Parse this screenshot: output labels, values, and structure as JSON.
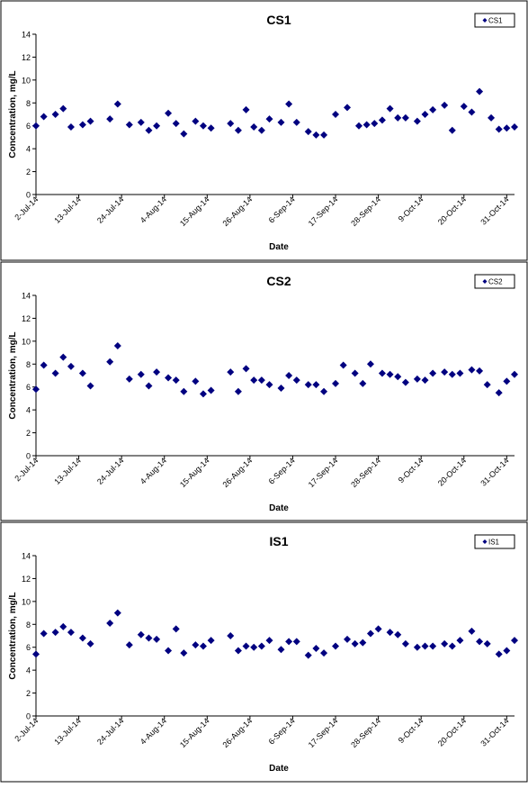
{
  "chart_data": [
    {
      "type": "scatter",
      "title": "CS1",
      "xlabel": "Date",
      "ylabel": "Concentration, mg/L",
      "ylim": [
        0,
        14
      ],
      "yticks": [
        "0",
        "2",
        "4",
        "6",
        "8",
        "10",
        "12",
        "14"
      ],
      "xlim": [
        "2-Jul-14",
        "2-Nov-14"
      ],
      "xticks": [
        "2-Jul-14",
        "13-Jul-14",
        "24-Jul-14",
        "4-Aug-14",
        "15-Aug-14",
        "26-Aug-14",
        "6-Sep-14",
        "17-Sep-14",
        "28-Sep-14",
        "9-Oct-14",
        "20-Oct-14",
        "31-Oct-14"
      ],
      "grid": false,
      "legend_position": "top-right",
      "marker_color": "#000080",
      "series": [
        {
          "name": "CS1",
          "x": [
            "2-Jul-14",
            "4-Jul-14",
            "7-Jul-14",
            "9-Jul-14",
            "11-Jul-14",
            "14-Jul-14",
            "16-Jul-14",
            "21-Jul-14",
            "23-Jul-14",
            "26-Jul-14",
            "29-Jul-14",
            "31-Jul-14",
            "2-Aug-14",
            "5-Aug-14",
            "7-Aug-14",
            "9-Aug-14",
            "12-Aug-14",
            "14-Aug-14",
            "16-Aug-14",
            "21-Aug-14",
            "23-Aug-14",
            "25-Aug-14",
            "27-Aug-14",
            "29-Aug-14",
            "31-Aug-14",
            "3-Sep-14",
            "5-Sep-14",
            "7-Sep-14",
            "10-Sep-14",
            "12-Sep-14",
            "14-Sep-14",
            "17-Sep-14",
            "20-Sep-14",
            "23-Sep-14",
            "25-Sep-14",
            "27-Sep-14",
            "29-Sep-14",
            "1-Oct-14",
            "3-Oct-14",
            "5-Oct-14",
            "8-Oct-14",
            "10-Oct-14",
            "12-Oct-14",
            "15-Oct-14",
            "17-Oct-14",
            "20-Oct-14",
            "22-Oct-14",
            "24-Oct-14",
            "27-Oct-14",
            "29-Oct-14",
            "31-Oct-14",
            "2-Nov-14"
          ],
          "values": [
            6.0,
            6.8,
            7.0,
            7.5,
            5.9,
            6.1,
            6.4,
            6.6,
            7.9,
            6.1,
            6.3,
            5.6,
            6.0,
            7.1,
            6.2,
            5.3,
            6.4,
            6.0,
            5.8,
            6.2,
            5.6,
            7.4,
            5.9,
            5.6,
            6.6,
            6.3,
            7.9,
            6.3,
            5.5,
            5.2,
            5.2,
            7.0,
            7.6,
            6.0,
            6.1,
            6.2,
            6.5,
            7.5,
            6.7,
            6.7,
            6.4,
            7.0,
            7.4,
            7.8,
            5.6,
            7.7,
            7.2,
            9.0,
            6.7,
            5.7,
            5.8,
            5.9
          ]
        }
      ]
    },
    {
      "type": "scatter",
      "title": "CS2",
      "xlabel": "Date",
      "ylabel": "Concentration, mg/L",
      "ylim": [
        0,
        14
      ],
      "yticks": [
        "0",
        "2",
        "4",
        "6",
        "8",
        "10",
        "12",
        "14"
      ],
      "xlim": [
        "2-Jul-14",
        "2-Nov-14"
      ],
      "xticks": [
        "2-Jul-14",
        "13-Jul-14",
        "24-Jul-14",
        "4-Aug-14",
        "15-Aug-14",
        "26-Aug-14",
        "6-Sep-14",
        "17-Sep-14",
        "28-Sep-14",
        "9-Oct-14",
        "20-Oct-14",
        "31-Oct-14"
      ],
      "grid": false,
      "legend_position": "top-right",
      "marker_color": "#000080",
      "series": [
        {
          "name": "CS2",
          "x": [
            "2-Jul-14",
            "4-Jul-14",
            "7-Jul-14",
            "9-Jul-14",
            "11-Jul-14",
            "14-Jul-14",
            "16-Jul-14",
            "21-Jul-14",
            "23-Jul-14",
            "26-Jul-14",
            "29-Jul-14",
            "31-Jul-14",
            "2-Aug-14",
            "5-Aug-14",
            "7-Aug-14",
            "9-Aug-14",
            "12-Aug-14",
            "14-Aug-14",
            "16-Aug-14",
            "21-Aug-14",
            "23-Aug-14",
            "25-Aug-14",
            "27-Aug-14",
            "29-Aug-14",
            "31-Aug-14",
            "3-Sep-14",
            "5-Sep-14",
            "7-Sep-14",
            "10-Sep-14",
            "12-Sep-14",
            "14-Sep-14",
            "17-Sep-14",
            "19-Sep-14",
            "22-Sep-14",
            "24-Sep-14",
            "26-Sep-14",
            "29-Sep-14",
            "1-Oct-14",
            "3-Oct-14",
            "5-Oct-14",
            "8-Oct-14",
            "10-Oct-14",
            "12-Oct-14",
            "15-Oct-14",
            "17-Oct-14",
            "19-Oct-14",
            "22-Oct-14",
            "24-Oct-14",
            "26-Oct-14",
            "29-Oct-14",
            "31-Oct-14",
            "2-Nov-14"
          ],
          "values": [
            5.8,
            7.9,
            7.2,
            8.6,
            7.8,
            7.2,
            6.1,
            8.2,
            9.6,
            6.7,
            7.1,
            6.1,
            7.3,
            6.8,
            6.6,
            5.6,
            6.5,
            5.4,
            5.7,
            7.3,
            5.6,
            7.6,
            6.6,
            6.6,
            6.2,
            5.9,
            7.0,
            6.6,
            6.2,
            6.2,
            5.6,
            6.3,
            7.9,
            7.2,
            6.3,
            8.0,
            7.2,
            7.1,
            6.9,
            6.4,
            6.7,
            6.6,
            7.2,
            7.3,
            7.1,
            7.2,
            7.5,
            7.4,
            6.2,
            5.5,
            6.5,
            7.1
          ]
        }
      ]
    },
    {
      "type": "scatter",
      "title": "IS1",
      "xlabel": "Date",
      "ylabel": "Concentration, mg/L",
      "ylim": [
        0,
        14
      ],
      "yticks": [
        "0",
        "2",
        "4",
        "6",
        "8",
        "10",
        "12",
        "14"
      ],
      "xlim": [
        "2-Jul-14",
        "2-Nov-14"
      ],
      "xticks": [
        "2-Jul-14",
        "13-Jul-14",
        "24-Jul-14",
        "4-Aug-14",
        "15-Aug-14",
        "26-Aug-14",
        "6-Sep-14",
        "17-Sep-14",
        "28-Sep-14",
        "9-Oct-14",
        "20-Oct-14",
        "31-Oct-14"
      ],
      "grid": false,
      "legend_position": "top-right",
      "marker_color": "#000080",
      "series": [
        {
          "name": "IS1",
          "x": [
            "2-Jul-14",
            "4-Jul-14",
            "7-Jul-14",
            "9-Jul-14",
            "11-Jul-14",
            "14-Jul-14",
            "16-Jul-14",
            "21-Jul-14",
            "23-Jul-14",
            "26-Jul-14",
            "29-Jul-14",
            "31-Jul-14",
            "2-Aug-14",
            "5-Aug-14",
            "7-Aug-14",
            "9-Aug-14",
            "12-Aug-14",
            "14-Aug-14",
            "16-Aug-14",
            "21-Aug-14",
            "23-Aug-14",
            "25-Aug-14",
            "27-Aug-14",
            "29-Aug-14",
            "31-Aug-14",
            "3-Sep-14",
            "5-Sep-14",
            "7-Sep-14",
            "10-Sep-14",
            "12-Sep-14",
            "14-Sep-14",
            "17-Sep-14",
            "20-Sep-14",
            "22-Sep-14",
            "24-Sep-14",
            "26-Sep-14",
            "28-Sep-14",
            "1-Oct-14",
            "3-Oct-14",
            "5-Oct-14",
            "8-Oct-14",
            "10-Oct-14",
            "12-Oct-14",
            "15-Oct-14",
            "17-Oct-14",
            "19-Oct-14",
            "22-Oct-14",
            "24-Oct-14",
            "26-Oct-14",
            "29-Oct-14",
            "31-Oct-14",
            "2-Nov-14"
          ],
          "values": [
            5.4,
            7.2,
            7.3,
            7.8,
            7.3,
            6.8,
            6.3,
            8.1,
            9.0,
            6.2,
            7.1,
            6.8,
            6.7,
            5.7,
            7.6,
            5.5,
            6.2,
            6.1,
            6.6,
            7.0,
            5.7,
            6.1,
            6.0,
            6.1,
            6.6,
            5.8,
            6.5,
            6.5,
            5.3,
            5.9,
            5.5,
            6.1,
            6.7,
            6.3,
            6.4,
            7.2,
            7.6,
            7.3,
            7.1,
            6.3,
            6.0,
            6.1,
            6.1,
            6.3,
            6.1,
            6.6,
            7.4,
            6.5,
            6.3,
            5.4,
            5.7,
            6.6
          ]
        }
      ]
    }
  ]
}
